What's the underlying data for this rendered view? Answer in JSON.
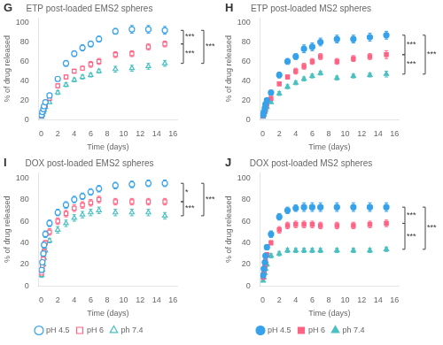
{
  "chart_data": [
    {
      "type": "scatter",
      "panel_label": "G",
      "title": "ETP post-loaded EMS2 spheres",
      "xlabel": "Time (days)",
      "ylabel": "% of drug released",
      "xlim": [
        -0.3,
        16.5
      ],
      "ylim": [
        0,
        105
      ],
      "xticks": [
        0,
        2,
        4,
        6,
        8,
        10,
        12,
        14,
        16
      ],
      "yticks": [
        0,
        20,
        40,
        60,
        80,
        100
      ],
      "grid": false,
      "series": [
        {
          "name": "pH 4.5",
          "marker": "open_circle",
          "x": [
            0.042,
            0.125,
            0.25,
            0.333,
            0.5,
            1,
            2,
            3,
            4,
            5,
            6,
            7,
            9,
            11,
            13,
            15
          ],
          "values": [
            5,
            8,
            11,
            14,
            18,
            25,
            42,
            58,
            68,
            74,
            78,
            83,
            91,
            93,
            93,
            92
          ],
          "yerr": [
            1,
            1,
            1,
            1,
            2,
            2,
            2,
            3,
            3,
            3,
            3,
            3,
            3,
            4,
            4,
            4
          ]
        },
        {
          "name": "pH 6",
          "marker": "open_square",
          "x": [
            0.042,
            0.125,
            0.25,
            0.333,
            0.5,
            1,
            2,
            3,
            4,
            5,
            6,
            7,
            9,
            11,
            13,
            15
          ],
          "values": [
            4,
            7,
            10,
            12,
            15,
            22,
            35,
            44,
            50,
            53,
            57,
            60,
            67,
            68,
            75,
            78
          ],
          "yerr": [
            1,
            1,
            1,
            1,
            1,
            2,
            2,
            2,
            2,
            2,
            3,
            3,
            3,
            3,
            3,
            3
          ]
        },
        {
          "name": "ph 7.4",
          "marker": "open_triangle",
          "x": [
            0.042,
            0.125,
            0.25,
            0.333,
            0.5,
            1,
            2,
            3,
            4,
            5,
            6,
            7,
            9,
            11,
            13,
            15
          ],
          "values": [
            3,
            5,
            8,
            10,
            13,
            18,
            28,
            36,
            41,
            44,
            46,
            50,
            52,
            53,
            55,
            58
          ],
          "yerr": [
            1,
            1,
            1,
            1,
            1,
            1,
            2,
            2,
            2,
            2,
            2,
            2,
            3,
            3,
            3,
            3
          ]
        }
      ],
      "annotations": [
        {
          "text": "***",
          "pair": [
            "pH 4.5",
            "pH 6"
          ]
        },
        {
          "text": "***",
          "pair": [
            "pH 4.5",
            "ph 7.4"
          ]
        },
        {
          "text": "***",
          "pair": [
            "pH 6",
            "ph 7.4"
          ]
        }
      ]
    },
    {
      "type": "scatter",
      "panel_label": "H",
      "title": "ETP post-loaded MS2 spheres",
      "xlabel": "Time (days)",
      "ylabel": "% of drug released",
      "xlim": [
        -0.3,
        16.5
      ],
      "ylim": [
        0,
        105
      ],
      "xticks": [
        0,
        2,
        4,
        6,
        8,
        10,
        12,
        14,
        16
      ],
      "yticks": [
        0,
        20,
        40,
        60,
        80,
        100
      ],
      "grid": false,
      "series": [
        {
          "name": "pH 4.5",
          "marker": "circle",
          "x": [
            0.042,
            0.125,
            0.25,
            0.333,
            0.5,
            1,
            2,
            3,
            4,
            5,
            6,
            7,
            9,
            11,
            13,
            15
          ],
          "values": [
            5,
            8,
            12,
            16,
            20,
            28,
            46,
            60,
            65,
            73,
            75,
            80,
            83,
            83,
            85,
            87
          ],
          "yerr": [
            1,
            1,
            1,
            2,
            2,
            2,
            3,
            3,
            3,
            4,
            4,
            4,
            4,
            4,
            4,
            4
          ]
        },
        {
          "name": "pH 6",
          "marker": "square",
          "x": [
            0.042,
            0.125,
            0.25,
            0.333,
            0.5,
            1,
            2,
            3,
            4,
            5,
            6,
            7,
            9,
            11,
            13,
            15
          ],
          "values": [
            4,
            6,
            9,
            12,
            16,
            22,
            37,
            44,
            50,
            55,
            60,
            65,
            60,
            63,
            65,
            67
          ],
          "yerr": [
            1,
            1,
            1,
            1,
            1,
            2,
            2,
            2,
            3,
            3,
            3,
            3,
            3,
            3,
            3,
            4
          ]
        },
        {
          "name": "ph 7.4",
          "marker": "triangle",
          "x": [
            0.042,
            0.125,
            0.25,
            0.333,
            0.5,
            1,
            2,
            3,
            4,
            5,
            6,
            7,
            9,
            11,
            13,
            15
          ],
          "values": [
            3,
            5,
            8,
            10,
            13,
            18,
            27,
            34,
            38,
            42,
            45,
            48,
            43,
            45,
            46,
            47
          ],
          "yerr": [
            1,
            1,
            1,
            1,
            1,
            1,
            2,
            2,
            2,
            2,
            2,
            2,
            2,
            2,
            2,
            3
          ]
        }
      ],
      "annotations": [
        {
          "text": "***",
          "pair": [
            "pH 4.5",
            "pH 6"
          ]
        },
        {
          "text": "***",
          "pair": [
            "pH 4.5",
            "ph 7.4"
          ]
        },
        {
          "text": "***",
          "pair": [
            "pH 6",
            "ph 7.4"
          ]
        }
      ]
    },
    {
      "type": "scatter",
      "panel_label": "I",
      "title": "DOX post-loaded EMS2 spheres",
      "xlabel": "Time (days)",
      "ylabel": "% of drug released",
      "xlim": [
        -0.3,
        16.5
      ],
      "ylim": [
        0,
        105
      ],
      "xticks": [
        0,
        2,
        4,
        6,
        8,
        10,
        12,
        14,
        16
      ],
      "yticks": [
        0,
        20,
        40,
        60,
        80,
        100
      ],
      "grid": false,
      "legend": "bottom",
      "series": [
        {
          "name": "pH 4.5",
          "marker": "open_circle",
          "x": [
            0.042,
            0.125,
            0.25,
            0.333,
            0.5,
            1,
            2,
            3,
            4,
            5,
            6,
            7,
            9,
            11,
            13,
            15
          ],
          "values": [
            15,
            22,
            30,
            38,
            48,
            58,
            68,
            75,
            80,
            83,
            87,
            90,
            93,
            94,
            95,
            95
          ],
          "yerr": [
            2,
            2,
            2,
            3,
            3,
            3,
            3,
            3,
            3,
            3,
            3,
            3,
            3,
            3,
            3,
            3
          ]
        },
        {
          "name": "pH 6",
          "marker": "open_square",
          "x": [
            0.042,
            0.125,
            0.25,
            0.333,
            0.5,
            1,
            2,
            3,
            4,
            5,
            6,
            7,
            9,
            11,
            13,
            15
          ],
          "values": [
            12,
            18,
            25,
            32,
            40,
            50,
            60,
            67,
            72,
            75,
            77,
            80,
            78,
            78,
            78,
            78
          ],
          "yerr": [
            2,
            2,
            2,
            2,
            2,
            3,
            3,
            3,
            3,
            3,
            3,
            3,
            3,
            3,
            3,
            3
          ]
        },
        {
          "name": "ph 7.4",
          "marker": "open_triangle",
          "x": [
            0.042,
            0.125,
            0.25,
            0.333,
            0.5,
            1,
            2,
            3,
            4,
            5,
            6,
            7,
            9,
            11,
            13,
            15
          ],
          "values": [
            10,
            15,
            20,
            26,
            33,
            42,
            52,
            58,
            63,
            66,
            68,
            70,
            68,
            68,
            68,
            65
          ],
          "yerr": [
            2,
            2,
            2,
            2,
            2,
            2,
            3,
            3,
            3,
            3,
            3,
            3,
            3,
            3,
            3,
            3
          ]
        }
      ],
      "annotations": [
        {
          "text": "*",
          "pair": [
            "pH 4.5",
            "pH 6"
          ]
        },
        {
          "text": "***",
          "pair": [
            "pH 4.5",
            "ph 7.4"
          ]
        },
        {
          "text": "***",
          "pair": [
            "pH 6",
            "ph 7.4"
          ]
        }
      ]
    },
    {
      "type": "scatter",
      "panel_label": "J",
      "title": "DOX post-loaded MS2 spheres",
      "xlabel": "Time (days)",
      "ylabel": "% of drug released",
      "xlim": [
        -0.3,
        16.5
      ],
      "ylim": [
        0,
        105
      ],
      "xticks": [
        0,
        2,
        4,
        6,
        8,
        10,
        12,
        14,
        16
      ],
      "yticks": [
        0,
        20,
        40,
        60,
        80,
        100
      ],
      "grid": false,
      "legend": "bottom",
      "series": [
        {
          "name": "pH 4.5",
          "marker": "circle",
          "x": [
            0.042,
            0.125,
            0.25,
            0.333,
            0.5,
            1,
            2,
            3,
            4,
            5,
            6,
            7,
            9,
            11,
            13,
            15
          ],
          "values": [
            10,
            16,
            22,
            28,
            36,
            48,
            64,
            70,
            72,
            73,
            73,
            73,
            73,
            73,
            73,
            73
          ],
          "yerr": [
            2,
            2,
            2,
            2,
            2,
            3,
            3,
            3,
            3,
            4,
            4,
            4,
            4,
            4,
            4,
            4
          ]
        },
        {
          "name": "pH 6",
          "marker": "square",
          "x": [
            0.042,
            0.125,
            0.25,
            0.333,
            0.5,
            1,
            2,
            3,
            4,
            5,
            6,
            7,
            9,
            11,
            13,
            15
          ],
          "values": [
            8,
            12,
            18,
            23,
            29,
            40,
            52,
            56,
            57,
            57,
            57,
            56,
            56,
            56,
            57,
            58
          ],
          "yerr": [
            2,
            2,
            2,
            2,
            2,
            2,
            3,
            3,
            3,
            3,
            3,
            3,
            3,
            3,
            3,
            3
          ]
        },
        {
          "name": "ph 7.4",
          "marker": "triangle",
          "x": [
            0.042,
            0.125,
            0.25,
            0.333,
            0.5,
            1,
            2,
            3,
            4,
            5,
            6,
            7,
            9,
            11,
            13,
            15
          ],
          "values": [
            5,
            8,
            12,
            16,
            20,
            28,
            30,
            33,
            33,
            33,
            33,
            33,
            33,
            33,
            33,
            34
          ],
          "yerr": [
            1,
            1,
            1,
            2,
            2,
            2,
            2,
            2,
            2,
            2,
            2,
            2,
            2,
            2,
            2,
            2
          ]
        }
      ],
      "annotations": [
        {
          "text": "***",
          "pair": [
            "pH 4.5",
            "pH 6"
          ]
        },
        {
          "text": "***",
          "pair": [
            "pH 4.5",
            "ph 7.4"
          ]
        },
        {
          "text": "***",
          "pair": [
            "pH 6",
            "ph 7.4"
          ]
        }
      ]
    }
  ]
}
